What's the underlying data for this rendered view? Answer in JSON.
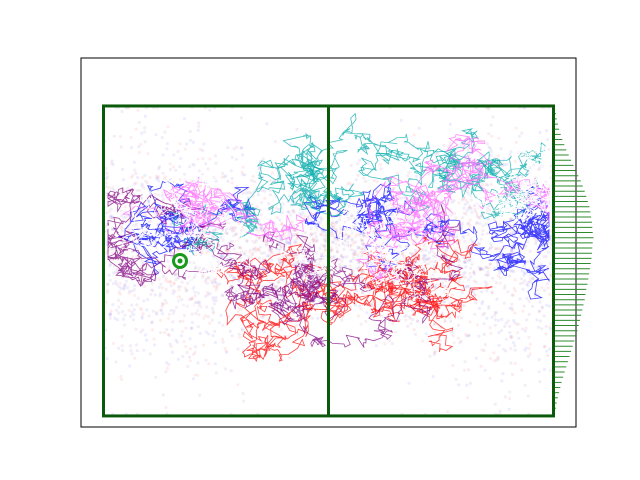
{
  "chart_data": {
    "type": "scatter",
    "title": "",
    "xlabel": "",
    "ylabel": "",
    "axes_ticks_visible": false,
    "grid": false,
    "legend": "none",
    "xlim": [
      -0.05,
      1.05
    ],
    "ylim": [
      -0.03,
      0.97
    ],
    "box": {
      "x": [
        0.0,
        1.0
      ],
      "y": [
        0.0,
        0.84
      ]
    },
    "divider_x": 0.5,
    "start_marker": {
      "x": 0.17,
      "y": 0.42
    },
    "colors": {
      "frame": "#000000",
      "box_outline": "#0b5a0b",
      "histogram": "#2e8b2e",
      "marker_fill": "#ffffff",
      "marker_ring": "#1a9a1a",
      "marker_core": "#c8c800",
      "background": "#ffffff"
    },
    "series": [
      {
        "color": "#0000ff",
        "y_center": 0.5,
        "spread": 0.16
      },
      {
        "color": "#ff0000",
        "y_center": 0.3,
        "spread": 0.17
      },
      {
        "color": "#800080",
        "y_center": 0.4,
        "spread": 0.16
      },
      {
        "color": "#00aaaa",
        "y_center": 0.62,
        "spread": 0.12
      },
      {
        "color": "#ff66ff",
        "y_center": 0.55,
        "spread": 0.14
      },
      {
        "color": "#ffffff",
        "y_center": 0.5,
        "spread": 0.12
      }
    ],
    "histogram_profile": [
      0.04,
      0.06,
      0.08,
      0.11,
      0.14,
      0.18,
      0.22,
      0.27,
      0.32,
      0.38,
      0.44,
      0.5,
      0.56,
      0.62,
      0.68,
      0.73,
      0.78,
      0.82,
      0.86,
      0.9,
      0.92,
      0.94,
      0.96,
      0.97,
      0.98,
      1.0,
      0.98,
      0.97,
      0.96,
      0.95,
      0.93,
      0.91,
      0.89,
      0.87,
      0.85,
      0.82,
      0.8,
      0.78,
      0.75,
      0.72,
      0.69,
      0.66,
      0.63,
      0.6,
      0.56,
      0.52,
      0.48,
      0.44,
      0.4,
      0.36,
      0.32,
      0.28,
      0.24,
      0.2,
      0.17,
      0.14,
      0.11,
      0.08,
      0.06,
      0.04
    ]
  }
}
